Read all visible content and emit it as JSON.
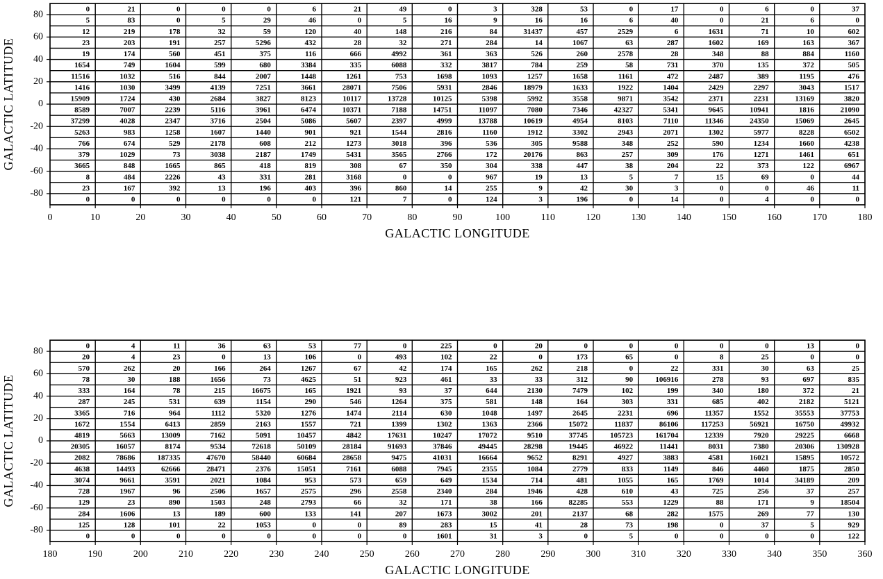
{
  "chart_data": [
    {
      "type": "grid",
      "xlabel": "GALACTIC LONGITUDE",
      "ylabel": "GALACTIC LATITUDE",
      "xlim": [
        0,
        180
      ],
      "ylim": [
        -90,
        90
      ],
      "xticks": [
        0,
        10,
        20,
        30,
        40,
        50,
        60,
        70,
        80,
        90,
        100,
        110,
        120,
        130,
        140,
        150,
        160,
        170,
        180
      ],
      "yticks": [
        -80,
        -60,
        -40,
        -20,
        0,
        20,
        40,
        60,
        80
      ],
      "rows": [
        [
          0,
          21,
          0,
          0,
          0,
          6,
          21,
          49,
          0,
          3,
          328,
          53,
          0,
          17,
          0,
          6,
          0,
          37
        ],
        [
          5,
          83,
          0,
          5,
          29,
          46,
          0,
          5,
          16,
          9,
          16,
          16,
          6,
          40,
          0,
          21,
          6,
          0
        ],
        [
          12,
          219,
          178,
          32,
          59,
          120,
          40,
          148,
          216,
          84,
          31437,
          457,
          2529,
          6,
          1631,
          71,
          10,
          602
        ],
        [
          23,
          203,
          191,
          257,
          5296,
          432,
          28,
          32,
          271,
          284,
          14,
          1067,
          63,
          287,
          1602,
          169,
          163,
          367
        ],
        [
          19,
          174,
          560,
          451,
          375,
          116,
          666,
          4992,
          361,
          363,
          526,
          260,
          2578,
          28,
          348,
          88,
          884,
          1160
        ],
        [
          1654,
          749,
          1604,
          599,
          680,
          3384,
          335,
          6088,
          332,
          3817,
          784,
          259,
          58,
          731,
          370,
          135,
          372,
          505
        ],
        [
          11516,
          1032,
          516,
          844,
          2007,
          1448,
          1261,
          753,
          1698,
          1093,
          1257,
          1658,
          1161,
          472,
          2487,
          389,
          1195,
          476
        ],
        [
          1416,
          1030,
          3499,
          4139,
          7251,
          3661,
          28071,
          7506,
          5931,
          2846,
          18979,
          1633,
          1922,
          1404,
          2429,
          2297,
          3043,
          1517
        ],
        [
          15909,
          1724,
          430,
          2684,
          3827,
          8123,
          10117,
          13728,
          10125,
          5398,
          5992,
          3558,
          9871,
          3542,
          2371,
          2231,
          13169,
          3820
        ],
        [
          8589,
          7007,
          2239,
          5116,
          3961,
          6474,
          10371,
          7188,
          14751,
          11097,
          7080,
          7346,
          42327,
          5341,
          9645,
          10941,
          1816,
          21090
        ],
        [
          37299,
          4028,
          2347,
          3716,
          2504,
          5086,
          5607,
          2397,
          4999,
          13788,
          10619,
          4954,
          8103,
          7110,
          11346,
          24350,
          15069,
          2645
        ],
        [
          5263,
          983,
          1258,
          1607,
          1440,
          901,
          921,
          1544,
          2816,
          1160,
          1912,
          3302,
          2943,
          2071,
          1302,
          5977,
          8228,
          6502
        ],
        [
          766,
          674,
          529,
          2178,
          608,
          212,
          1273,
          3018,
          396,
          536,
          305,
          9588,
          348,
          252,
          590,
          1234,
          1660,
          4238
        ],
        [
          379,
          1029,
          73,
          3038,
          2187,
          1749,
          5431,
          3565,
          2766,
          172,
          20176,
          863,
          257,
          309,
          176,
          1271,
          1461,
          651
        ],
        [
          3665,
          848,
          1665,
          865,
          418,
          819,
          308,
          67,
          350,
          304,
          338,
          447,
          38,
          204,
          22,
          373,
          122,
          6967
        ],
        [
          8,
          484,
          2226,
          43,
          331,
          281,
          3168,
          0,
          0,
          967,
          19,
          13,
          5,
          7,
          15,
          69,
          0,
          44
        ],
        [
          23,
          167,
          392,
          13,
          196,
          403,
          396,
          860,
          14,
          255,
          9,
          42,
          30,
          3,
          0,
          0,
          46,
          11
        ],
        [
          0,
          0,
          0,
          0,
          0,
          0,
          121,
          7,
          0,
          124,
          3,
          196,
          0,
          14,
          0,
          4,
          0,
          0
        ]
      ]
    },
    {
      "type": "grid",
      "xlabel": "GALACTIC LONGITUDE",
      "ylabel": "GALACTIC LATITUDE",
      "xlim": [
        180,
        360
      ],
      "ylim": [
        -90,
        90
      ],
      "xticks": [
        180,
        190,
        200,
        210,
        220,
        230,
        240,
        250,
        260,
        270,
        280,
        290,
        300,
        310,
        320,
        330,
        340,
        350,
        360
      ],
      "yticks": [
        -80,
        -60,
        -40,
        -20,
        0,
        20,
        40,
        60,
        80
      ],
      "rows": [
        [
          0,
          4,
          11,
          36,
          63,
          53,
          77,
          0,
          225,
          0,
          20,
          0,
          0,
          0,
          0,
          0,
          13,
          0
        ],
        [
          20,
          4,
          23,
          0,
          13,
          106,
          0,
          493,
          102,
          22,
          0,
          173,
          65,
          0,
          8,
          25,
          0,
          0
        ],
        [
          570,
          262,
          20,
          166,
          264,
          1267,
          67,
          42,
          174,
          165,
          262,
          218,
          0,
          22,
          331,
          30,
          63,
          25
        ],
        [
          78,
          30,
          188,
          1656,
          73,
          4625,
          51,
          923,
          461,
          33,
          33,
          312,
          90,
          106916,
          278,
          93,
          697,
          835
        ],
        [
          333,
          164,
          78,
          215,
          16675,
          165,
          1921,
          93,
          37,
          644,
          2130,
          7479,
          102,
          199,
          340,
          180,
          372,
          21
        ],
        [
          287,
          245,
          531,
          639,
          1154,
          290,
          546,
          1264,
          375,
          581,
          148,
          164,
          303,
          331,
          685,
          402,
          2182,
          5121
        ],
        [
          3365,
          716,
          964,
          1112,
          5320,
          1276,
          1474,
          2114,
          630,
          1048,
          1497,
          2645,
          2231,
          696,
          11357,
          1552,
          35553,
          37753
        ],
        [
          1672,
          1554,
          6413,
          2859,
          2163,
          1557,
          721,
          1399,
          1302,
          1363,
          2366,
          15072,
          11837,
          86106,
          117253,
          56921,
          16750,
          49932
        ],
        [
          4819,
          5663,
          13009,
          7162,
          5091,
          10457,
          4842,
          17631,
          10247,
          17072,
          9510,
          37745,
          105723,
          161704,
          12339,
          7920,
          29225,
          6668
        ],
        [
          20305,
          16057,
          8174,
          9534,
          72618,
          50109,
          28184,
          91693,
          37846,
          49445,
          28298,
          19445,
          46922,
          11441,
          8031,
          7380,
          20306,
          130928
        ],
        [
          2082,
          78686,
          187335,
          47670,
          58440,
          60684,
          28658,
          9475,
          41031,
          16664,
          9652,
          8291,
          4927,
          3883,
          4581,
          16021,
          15895,
          10572
        ],
        [
          4638,
          14493,
          62666,
          28471,
          2376,
          15051,
          7161,
          6088,
          7945,
          2355,
          1084,
          2779,
          833,
          1149,
          846,
          4460,
          1875,
          2850
        ],
        [
          3074,
          9661,
          3591,
          2021,
          1084,
          953,
          573,
          659,
          649,
          1534,
          714,
          481,
          1055,
          165,
          1769,
          1014,
          34189,
          209
        ],
        [
          728,
          1967,
          96,
          2506,
          1657,
          2575,
          296,
          2558,
          2340,
          284,
          1946,
          428,
          610,
          43,
          725,
          256,
          37,
          257
        ],
        [
          129,
          23,
          890,
          1503,
          248,
          2793,
          66,
          32,
          171,
          38,
          166,
          82285,
          553,
          1229,
          88,
          171,
          9,
          18504
        ],
        [
          284,
          1606,
          13,
          189,
          600,
          133,
          141,
          207,
          1673,
          3002,
          201,
          2137,
          68,
          282,
          1575,
          269,
          77,
          130
        ],
        [
          125,
          128,
          101,
          22,
          1053,
          0,
          0,
          89,
          283,
          15,
          41,
          28,
          73,
          198,
          0,
          37,
          5,
          929
        ],
        [
          0,
          0,
          0,
          0,
          0,
          0,
          0,
          0,
          1601,
          31,
          3,
          0,
          5,
          0,
          0,
          0,
          0,
          122
        ]
      ]
    }
  ]
}
